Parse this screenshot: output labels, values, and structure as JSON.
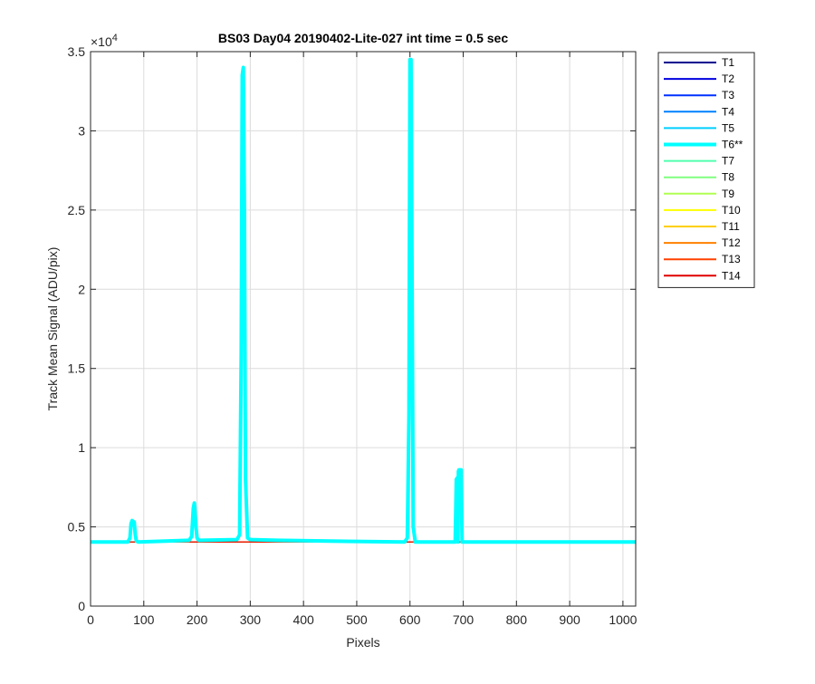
{
  "chart_data": {
    "type": "line",
    "title": "BS03 Day04 20190402-Lite-027 int time = 0.5 sec",
    "xlabel": "Pixels",
    "ylabel": "Track Mean Signal (ADU/pix)",
    "xlim": [
      0,
      1024
    ],
    "ylim": [
      0,
      35000
    ],
    "xticks": [
      0,
      100,
      200,
      300,
      400,
      500,
      600,
      700,
      800,
      900,
      1000
    ],
    "yticks": [
      0,
      5000,
      10000,
      15000,
      20000,
      25000,
      30000,
      35000
    ],
    "ytick_labels": [
      "0",
      "0.5",
      "1",
      "1.5",
      "2",
      "2.5",
      "3",
      "3.5"
    ],
    "y_exponent_label": "×10",
    "y_exponent_power": "4",
    "grid": true,
    "legend_placement": "outside-right",
    "series": [
      {
        "name": "T1",
        "color": "#00008F",
        "baseline": 4050
      },
      {
        "name": "T2",
        "color": "#0000DF",
        "baseline": 4050
      },
      {
        "name": "T3",
        "color": "#0030FF",
        "baseline": 4050
      },
      {
        "name": "T4",
        "color": "#0080FF",
        "baseline": 4050
      },
      {
        "name": "T5",
        "color": "#00CFFF",
        "baseline": 4050
      },
      {
        "name": "T6**",
        "color": "#00FFFF",
        "highlight": true,
        "baseline": 4050,
        "x": [
          0,
          70,
          74,
          76,
          78,
          82,
          84,
          86,
          90,
          185,
          190,
          193,
          195,
          198,
          200,
          203,
          208,
          275,
          280,
          283,
          285,
          287,
          289,
          291,
          295,
          300,
          350,
          450,
          590,
          595,
          598,
          600,
          602,
          604,
          606,
          610,
          680,
          685,
          687,
          689,
          690,
          691,
          692,
          694,
          696,
          698,
          700,
          1024
        ],
        "y": [
          4050,
          4050,
          4300,
          5200,
          5400,
          5300,
          4500,
          4100,
          4050,
          4150,
          4400,
          6200,
          6500,
          5000,
          4300,
          4150,
          4150,
          4200,
          4500,
          16000,
          33500,
          34000,
          25000,
          8000,
          4300,
          4200,
          4150,
          4100,
          4050,
          4300,
          12000,
          34500,
          34500,
          20000,
          5000,
          4050,
          4050,
          4050,
          8000,
          8100,
          4050,
          8500,
          8600,
          8600,
          8600,
          4050,
          4050,
          4050
        ]
      },
      {
        "name": "T7",
        "color": "#50FFAF",
        "baseline": 4050
      },
      {
        "name": "T8",
        "color": "#80FF80",
        "baseline": 4050
      },
      {
        "name": "T9",
        "color": "#AFFF50",
        "baseline": 4050
      },
      {
        "name": "T10",
        "color": "#FFFF00",
        "baseline": 4050
      },
      {
        "name": "T11",
        "color": "#FFCF00",
        "baseline": 4050
      },
      {
        "name": "T12",
        "color": "#FF8000",
        "baseline": 4050
      },
      {
        "name": "T13",
        "color": "#FF4000",
        "baseline": 4050
      },
      {
        "name": "T14",
        "color": "#E00000",
        "baseline": 4050
      }
    ]
  }
}
